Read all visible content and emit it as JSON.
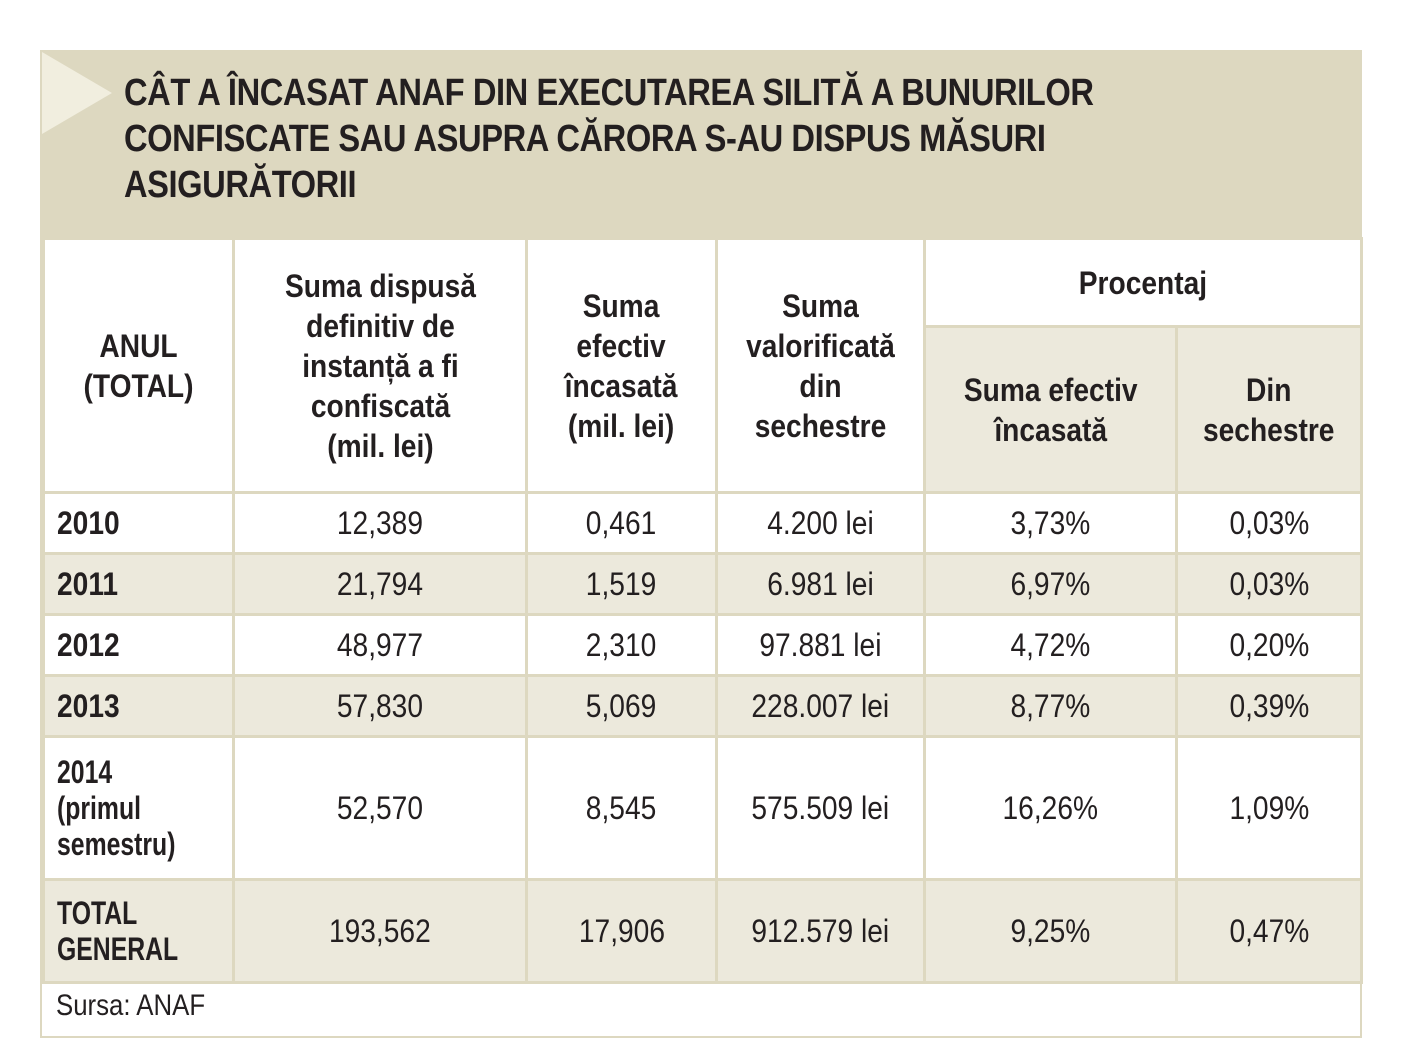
{
  "title": [
    "CÂT A ÎNCASAT ANAF DIN EXECUTAREA SILITĂ A BUNURILOR",
    "CONFISCATE SAU ASUPRA CĂRORA S-AU DISPUS MĂSURI",
    "ASIGURĂTORII"
  ],
  "headers": {
    "anul": [
      "ANUL",
      "(TOTAL)"
    ],
    "suma_dispusa": [
      "Suma dispusă",
      "definitiv de",
      "instanță a fi",
      "confiscată",
      "(mil. lei)"
    ],
    "suma_efectiv": [
      "Suma",
      "efectiv",
      "încasată",
      "(mil. lei)"
    ],
    "suma_valorificata": [
      "Suma",
      "valorificată",
      "din",
      "sechestre"
    ],
    "procentaj": "Procentaj",
    "pct_efectiv": [
      "Suma efectiv",
      "încasată"
    ],
    "pct_sechestre": [
      "Din",
      "sechestre"
    ]
  },
  "rows": [
    {
      "year": [
        "2010"
      ],
      "dispusa": "12,389",
      "efectiv": "0,461",
      "valorificata": "4.200 lei",
      "pct_efectiv": "3,73%",
      "pct_sechestre": "0,03%"
    },
    {
      "year": [
        "2011"
      ],
      "dispusa": "21,794",
      "efectiv": "1,519",
      "valorificata": "6.981 lei",
      "pct_efectiv": "6,97%",
      "pct_sechestre": "0,03%"
    },
    {
      "year": [
        "2012"
      ],
      "dispusa": "48,977",
      "efectiv": "2,310",
      "valorificata": "97.881 lei",
      "pct_efectiv": "4,72%",
      "pct_sechestre": "0,20%"
    },
    {
      "year": [
        "2013"
      ],
      "dispusa": "57,830",
      "efectiv": "5,069",
      "valorificata": "228.007 lei",
      "pct_efectiv": "8,77%",
      "pct_sechestre": "0,39%"
    },
    {
      "year": [
        "2014",
        "(primul",
        "semestru)"
      ],
      "dispusa": "52,570",
      "efectiv": "8,545",
      "valorificata": "575.509 lei",
      "pct_efectiv": "16,26%",
      "pct_sechestre": "1,09%"
    },
    {
      "year": [
        "TOTAL",
        "GENERAL"
      ],
      "dispusa": "193,562",
      "efectiv": "17,906",
      "valorificata": "912.579 lei",
      "pct_efectiv": "9,25%",
      "pct_sechestre": "0,47%"
    }
  ],
  "source": "Sursa: ANAF",
  "colors": {
    "header_bg": "#ddd8c0",
    "shade_bg": "#ece9dc",
    "text": "#231f20"
  }
}
